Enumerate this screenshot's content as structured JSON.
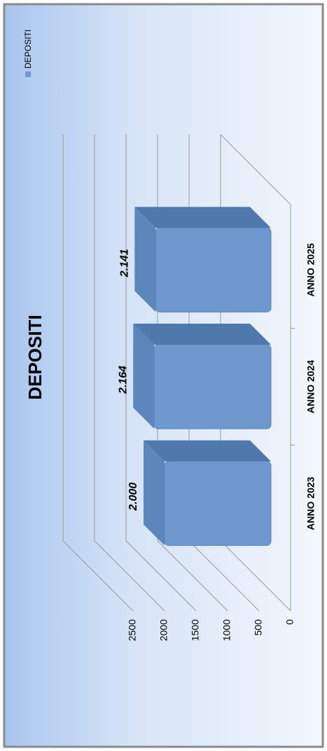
{
  "chart_data": {
    "type": "bar3d",
    "title": "DEPOSITI",
    "categories": [
      "ANNO 2023",
      "ANNO 2024",
      "ANNO 2025"
    ],
    "series": [
      {
        "name": "DEPOSITI",
        "color": "#6f98cf",
        "values": [
          2000,
          2164,
          2141
        ],
        "value_labels": [
          "2.000",
          "2.164",
          "2.141"
        ]
      }
    ],
    "ylim": [
      0,
      2500
    ],
    "yticks": [
      0,
      500,
      1000,
      1500,
      2000,
      2500
    ],
    "grid": true,
    "legend": "right"
  }
}
